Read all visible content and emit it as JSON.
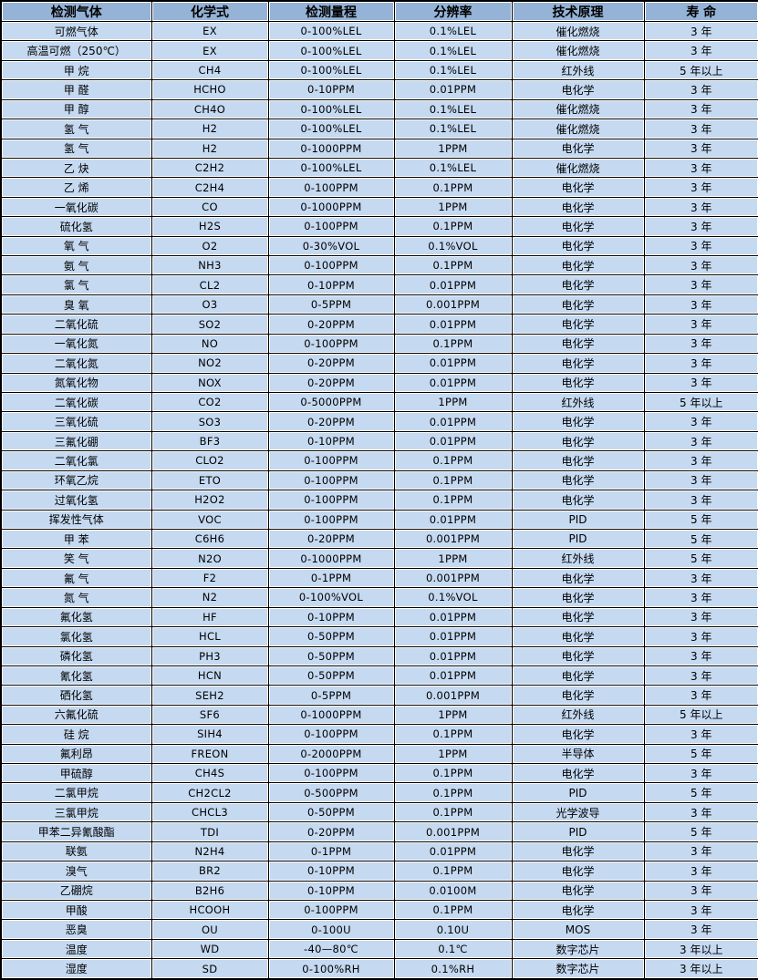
{
  "colors": {
    "header_bg": "#95b3d7",
    "row_bg": "#c5d9f1",
    "border": "#000000",
    "text": "#000000"
  },
  "table": {
    "columns": [
      "检测气体",
      "化学式",
      "检测量程",
      "分辨率",
      "技术原理",
      "寿 命"
    ],
    "column_keys": [
      "gas",
      "formula",
      "range",
      "resolution",
      "principle",
      "lifespan"
    ],
    "rows": [
      [
        "可燃气体",
        "EX",
        "0-100%LEL",
        "0.1%LEL",
        "催化燃烧",
        "3 年"
      ],
      [
        "高温可燃（250℃）",
        "EX",
        "0-100%LEL",
        "0.1%LEL",
        "催化燃烧",
        "3 年"
      ],
      [
        "甲 烷",
        "CH4",
        "0-100%LEL",
        "0.1%LEL",
        "红外线",
        "5 年以上"
      ],
      [
        "甲 醛",
        "HCHO",
        "0-10PPM",
        "0.01PPM",
        "电化学",
        "3 年"
      ],
      [
        "甲 醇",
        "CH4O",
        "0-100%LEL",
        "0.1%LEL",
        "催化燃烧",
        "3 年"
      ],
      [
        "氢 气",
        "H2",
        "0-100%LEL",
        "0.1%LEL",
        "催化燃烧",
        "3 年"
      ],
      [
        "氢 气",
        "H2",
        "0-1000PPM",
        "1PPM",
        "电化学",
        "3 年"
      ],
      [
        "乙 炔",
        "C2H2",
        "0-100%LEL",
        "0.1%LEL",
        "催化燃烧",
        "3 年"
      ],
      [
        "乙 烯",
        "C2H4",
        "0-100PPM",
        "0.1PPM",
        "电化学",
        "3 年"
      ],
      [
        "一氧化碳",
        "CO",
        "0-1000PPM",
        "1PPM",
        "电化学",
        "3 年"
      ],
      [
        "硫化氢",
        "H2S",
        "0-100PPM",
        "0.1PPM",
        "电化学",
        "3 年"
      ],
      [
        "氧 气",
        "O2",
        "0-30%VOL",
        "0.1%VOL",
        "电化学",
        "3 年"
      ],
      [
        "氨 气",
        "NH3",
        "0-100PPM",
        "0.1PPM",
        "电化学",
        "3 年"
      ],
      [
        "氯 气",
        "CL2",
        "0-10PPM",
        "0.01PPM",
        "电化学",
        "3 年"
      ],
      [
        "臭 氧",
        "O3",
        "0-5PPM",
        "0.001PPM",
        "电化学",
        "3 年"
      ],
      [
        "二氧化硫",
        "SO2",
        "0-20PPM",
        "0.01PPM",
        "电化学",
        "3 年"
      ],
      [
        "一氧化氮",
        "NO",
        "0-100PPM",
        "0.1PPM",
        "电化学",
        "3 年"
      ],
      [
        "二氧化氮",
        "NO2",
        "0-20PPM",
        "0.01PPM",
        "电化学",
        "3 年"
      ],
      [
        "氮氧化物",
        "NOX",
        "0-20PPM",
        "0.01PPM",
        "电化学",
        "3 年"
      ],
      [
        "二氧化碳",
        "CO2",
        "0-5000PPM",
        "1PPM",
        "红外线",
        "5 年以上"
      ],
      [
        "三氧化硫",
        "SO3",
        "0-20PPM",
        "0.01PPM",
        "电化学",
        "3 年"
      ],
      [
        "三氟化硼",
        "BF3",
        "0-10PPM",
        "0.01PPM",
        "电化学",
        "3 年"
      ],
      [
        "二氧化氯",
        "CLO2",
        "0-100PPM",
        "0.1PPM",
        "电化学",
        "3 年"
      ],
      [
        "环氧乙烷",
        "ETO",
        "0-100PPM",
        "0.1PPM",
        "电化学",
        "3 年"
      ],
      [
        "过氧化氢",
        "H2O2",
        "0-100PPM",
        "0.1PPM",
        "电化学",
        "3 年"
      ],
      [
        "挥发性气体",
        "VOC",
        "0-100PPM",
        "0.01PPM",
        "PID",
        "5 年"
      ],
      [
        "甲 苯",
        "C6H6",
        "0-20PPM",
        "0.001PPM",
        "PID",
        "5 年"
      ],
      [
        "笑 气",
        "N2O",
        "0-1000PPM",
        "1PPM",
        "红外线",
        "5 年"
      ],
      [
        "氟 气",
        "F2",
        "0-1PPM",
        "0.001PPM",
        "电化学",
        "3 年"
      ],
      [
        "氮 气",
        "N2",
        "0-100%VOL",
        "0.1%VOL",
        "电化学",
        "3 年"
      ],
      [
        "氟化氢",
        "HF",
        "0-10PPM",
        "0.01PPM",
        "电化学",
        "3 年"
      ],
      [
        "氯化氢",
        "HCL",
        "0-50PPM",
        "0.01PPM",
        "电化学",
        "3 年"
      ],
      [
        "磷化氢",
        "PH3",
        "0-50PPM",
        "0.01PPM",
        "电化学",
        "3 年"
      ],
      [
        "氰化氢",
        "HCN",
        "0-50PPM",
        "0.01PPM",
        "电化学",
        "3 年"
      ],
      [
        "硒化氢",
        "SEH2",
        "0-5PPM",
        "0.001PPM",
        "电化学",
        "3 年"
      ],
      [
        "六氟化硫",
        "SF6",
        "0-1000PPM",
        "1PPM",
        "红外线",
        "5 年以上"
      ],
      [
        "硅 烷",
        "SIH4",
        "0-100PPM",
        "0.1PPM",
        "电化学",
        "3 年"
      ],
      [
        "氟利昂",
        "FREON",
        "0-2000PPM",
        "1PPM",
        "半导体",
        "5 年"
      ],
      [
        "甲硫醇",
        "CH4S",
        "0-100PPM",
        "0.1PPM",
        "电化学",
        "3 年"
      ],
      [
        "二氯甲烷",
        "CH2CL2",
        "0-500PPM",
        "0.1PPM",
        "PID",
        "5 年"
      ],
      [
        "三氯甲烷",
        "CHCL3",
        "0-50PPM",
        "0.1PPM",
        "光学波导",
        "3 年"
      ],
      [
        "甲苯二异氰酸酯",
        "TDI",
        "0-20PPM",
        "0.001PPM",
        "PID",
        "5 年"
      ],
      [
        "联氨",
        "N2H4",
        "0-1PPM",
        "0.01PPM",
        "电化学",
        "3 年"
      ],
      [
        "溴气",
        "BR2",
        "0-10PPM",
        "0.1PPM",
        "电化学",
        "3 年"
      ],
      [
        "乙硼烷",
        "B2H6",
        "0-10PPM",
        "0.0100M",
        "电化学",
        "3 年"
      ],
      [
        "甲酸",
        "HCOOH",
        "0-100PPM",
        "0.1PPM",
        "电化学",
        "3 年"
      ],
      [
        "恶臭",
        "OU",
        "0-100U",
        "0.10U",
        "MOS",
        "3 年"
      ],
      [
        "温度",
        "WD",
        "-40—80℃",
        "0.1℃",
        "数字芯片",
        "3 年以上"
      ],
      [
        "湿度",
        "SD",
        "0-100%RH",
        "0.1%RH",
        "数字芯片",
        "3 年以上"
      ]
    ]
  }
}
